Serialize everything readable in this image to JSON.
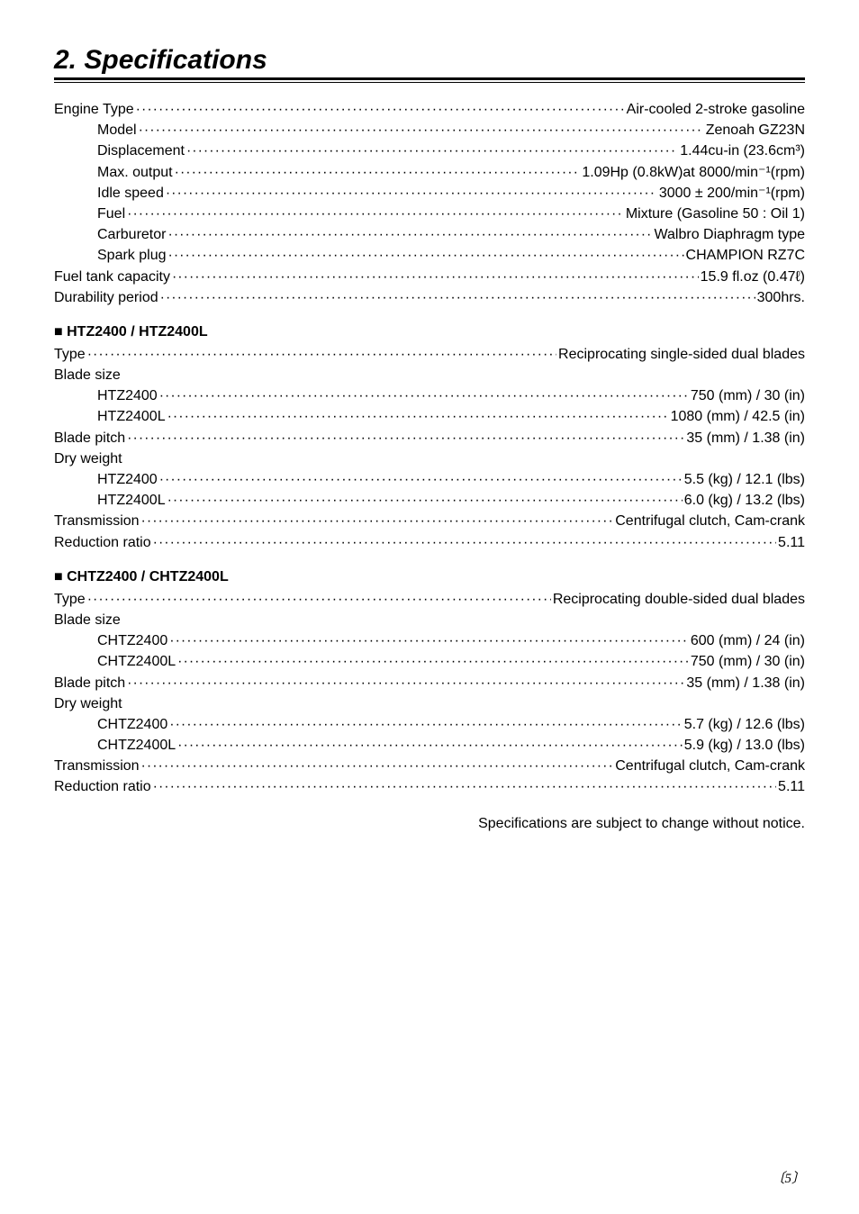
{
  "title": "2. Specifications",
  "general": [
    {
      "label": "Engine Type",
      "value": "Air-cooled 2-stroke gasoline",
      "indent": false
    },
    {
      "label": "Model",
      "value": "Zenoah GZ23N",
      "indent": true
    },
    {
      "label": "Displacement",
      "value": "1.44cu-in (23.6cm³)",
      "indent": true
    },
    {
      "label": "Max. output",
      "value": "1.09Hp (0.8kW)at 8000/min⁻¹(rpm)",
      "indent": true
    },
    {
      "label": "Idle speed",
      "value": "3000 ± 200/min⁻¹(rpm)",
      "indent": true
    },
    {
      "label": "Fuel",
      "value": "Mixture (Gasoline 50 : Oil 1)",
      "indent": true
    },
    {
      "label": "Carburetor",
      "value": "Walbro Diaphragm type",
      "indent": true
    },
    {
      "label": "Spark plug",
      "value": "CHAMPION RZ7C",
      "indent": true
    },
    {
      "label": "Fuel tank capacity",
      "value": "15.9 fl.oz (0.47ℓ)",
      "indent": false
    },
    {
      "label": "Durability period",
      "value": "300hrs.",
      "indent": false
    }
  ],
  "section1": {
    "heading": "■ HTZ2400 / HTZ2400L",
    "lines": [
      {
        "label": "Type",
        "value": "Reciprocating single-sided dual blades",
        "indent": false
      },
      {
        "label": "Blade size",
        "group": true
      },
      {
        "label": "HTZ2400",
        "value": "750 (mm) / 30 (in)",
        "indent": true
      },
      {
        "label": "HTZ2400L",
        "value": "1080 (mm) / 42.5 (in)",
        "indent": true
      },
      {
        "label": "Blade pitch",
        "value": "35 (mm) / 1.38 (in)",
        "indent": false
      },
      {
        "label": "Dry weight",
        "group": true
      },
      {
        "label": "HTZ2400",
        "value": "5.5 (kg) / 12.1 (lbs)",
        "indent": true
      },
      {
        "label": "HTZ2400L",
        "value": "6.0 (kg) / 13.2 (lbs)",
        "indent": true
      },
      {
        "label": "Transmission",
        "value": "Centrifugal clutch, Cam-crank",
        "indent": false
      },
      {
        "label": "Reduction ratio",
        "value": "5.11",
        "indent": false
      }
    ]
  },
  "section2": {
    "heading": "■ CHTZ2400 / CHTZ2400L",
    "lines": [
      {
        "label": "Type",
        "value": "Reciprocating double-sided dual blades",
        "indent": false
      },
      {
        "label": "Blade size",
        "group": true
      },
      {
        "label": "CHTZ2400",
        "value": "600 (mm) / 24 (in)",
        "indent": true
      },
      {
        "label": "CHTZ2400L",
        "value": "750 (mm) / 30 (in)",
        "indent": true
      },
      {
        "label": "Blade pitch",
        "value": "35 (mm) / 1.38 (in)",
        "indent": false
      },
      {
        "label": "Dry weight",
        "group": true
      },
      {
        "label": "CHTZ2400",
        "value": "5.7 (kg) / 12.6 (lbs)",
        "indent": true
      },
      {
        "label": "CHTZ2400L",
        "value": "5.9 (kg) / 13.0 (lbs)",
        "indent": true
      },
      {
        "label": "Transmission",
        "value": "Centrifugal clutch, Cam-crank",
        "indent": false
      },
      {
        "label": "Reduction ratio",
        "value": "5.11",
        "indent": false
      }
    ]
  },
  "footnote": "Specifications are subject to change without notice.",
  "page_number": "〔5〕",
  "dot_fill": "·················································································································································································"
}
